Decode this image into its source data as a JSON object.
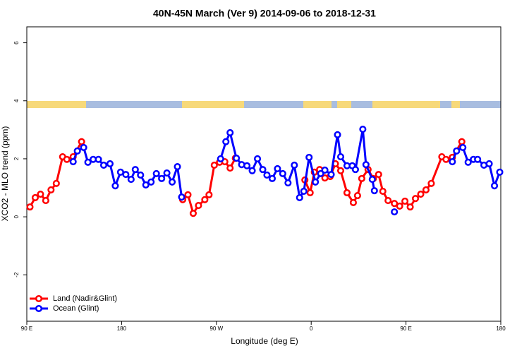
{
  "chart_data": {
    "type": "line",
    "title": "40N-45N March (Ver 9)   2014-09-06 to 2018-12-31",
    "x_label": "Longitude (deg E)",
    "y_label": "XCO2 - MLO trend (ppm)",
    "xlim": [
      90,
      540
    ],
    "ylim": [
      -3.6,
      6.55
    ],
    "xticks": [
      {
        "value": 90,
        "label": "90 E"
      },
      180,
      {
        "value": 270,
        "label": "90 W"
      },
      {
        "value": 360,
        "label": "0"
      },
      {
        "value": 450,
        "label": "90 E"
      },
      {
        "value": 540,
        "label": "180"
      }
    ],
    "yticks": [
      -2,
      0,
      2,
      4,
      6
    ],
    "legend": "bottom-left",
    "series": [
      {
        "name": "Land (Nadir&Glint)",
        "color": "#ff0000",
        "x": [
          93,
          98,
          103,
          108,
          113,
          118,
          124,
          128,
          134,
          142,
          null,
          238,
          243,
          248,
          253,
          259,
          263,
          268,
          273,
          278,
          283,
          288,
          null,
          354,
          359,
          363,
          368,
          373,
          378,
          383,
          388,
          394,
          400,
          404,
          408,
          414,
          419,
          424,
          428,
          433,
          439,
          444,
          449,
          454,
          459,
          464,
          469,
          474,
          484,
          488,
          494,
          503
        ],
        "values": [
          0.34,
          0.66,
          0.78,
          0.56,
          0.93,
          1.15,
          2.07,
          1.98,
          2.07,
          2.59,
          null,
          0.59,
          0.76,
          0.12,
          0.39,
          0.59,
          0.76,
          1.78,
          1.88,
          1.9,
          1.68,
          2.02,
          null,
          1.27,
          0.83,
          1.54,
          1.63,
          1.34,
          1.39,
          1.83,
          1.59,
          0.83,
          0.49,
          0.73,
          1.32,
          1.63,
          1.32,
          1.46,
          0.88,
          0.56,
          0.46,
          0.37,
          0.54,
          0.34,
          0.63,
          0.78,
          0.93,
          1.15,
          2.07,
          1.98,
          2.05,
          2.59
        ]
      },
      {
        "name": "Ocean (Glint)",
        "color": "#0000ff",
        "x": [
          134,
          138,
          144,
          148,
          153,
          158,
          163,
          169,
          174,
          179,
          184,
          189,
          193,
          198,
          203,
          208,
          213,
          218,
          223,
          228,
          233,
          237,
          null,
          274,
          279,
          283,
          289,
          294,
          299,
          304,
          309,
          314,
          318,
          323,
          328,
          333,
          338,
          344,
          349,
          353,
          358,
          364,
          369,
          373,
          379,
          385,
          388,
          394,
          399,
          402,
          409,
          412,
          418,
          420,
          null,
          439,
          null,
          494,
          498,
          504,
          509,
          514,
          518,
          524,
          529,
          534,
          539
        ],
        "values": [
          1.9,
          2.27,
          2.39,
          1.88,
          1.98,
          1.98,
          1.78,
          1.83,
          1.07,
          1.54,
          1.46,
          1.29,
          1.63,
          1.44,
          1.1,
          1.2,
          1.49,
          1.32,
          1.51,
          1.2,
          1.73,
          0.68,
          null,
          2.0,
          2.59,
          2.9,
          2.02,
          1.8,
          1.76,
          1.59,
          2.0,
          1.63,
          1.44,
          1.32,
          1.66,
          1.49,
          1.17,
          1.78,
          0.66,
          0.88,
          2.05,
          1.2,
          1.49,
          1.61,
          1.46,
          2.83,
          2.07,
          1.76,
          1.76,
          1.63,
          3.02,
          1.8,
          1.29,
          0.9,
          null,
          0.17,
          null,
          1.9,
          2.27,
          2.39,
          1.88,
          1.98,
          1.98,
          1.78,
          1.83,
          1.07,
          1.54
        ]
      }
    ]
  }
}
